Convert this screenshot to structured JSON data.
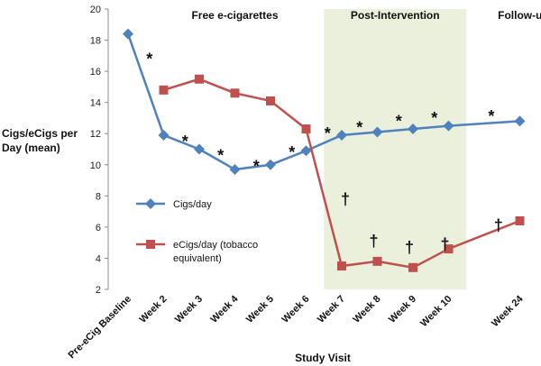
{
  "chart_data": {
    "type": "line",
    "ylabel_lines": [
      "Cigs/eCigs per",
      "Day (mean)"
    ],
    "xlabel": "Study Visit",
    "ylim": [
      2,
      20
    ],
    "yticks": [
      2,
      4,
      6,
      8,
      10,
      12,
      14,
      16,
      18,
      20
    ],
    "categories": [
      "Pre-eCig Baseline",
      "Week 2",
      "Week 3",
      "Week 4",
      "Week 5",
      "Week 6",
      "Week 7",
      "Week 8",
      "Week 9",
      "Week 10",
      "",
      "Week 24"
    ],
    "phases": [
      {
        "label": "Free e-cigarettes",
        "from_index": 0,
        "to_index": 6,
        "shaded": false
      },
      {
        "label": "Post-Intervention",
        "from_index": 5.5,
        "to_index": 9.5,
        "shaded": true
      },
      {
        "label": "Follow-up",
        "from_index": 10.6,
        "to_index": 11.6,
        "shaded": false
      }
    ],
    "series": [
      {
        "name": "Cigs/day",
        "color": "#4f81bd",
        "marker": "diamond",
        "values": [
          18.4,
          11.9,
          11.0,
          9.7,
          10.0,
          10.9,
          11.9,
          12.1,
          12.3,
          12.5,
          null,
          12.8
        ]
      },
      {
        "name": "eCigs/day (tobacco equivalent)",
        "legend_lines": [
          "eCigs/day (tobacco",
          "equivalent)"
        ],
        "color": "#c0504d",
        "marker": "square",
        "values": [
          null,
          14.8,
          15.5,
          14.6,
          14.1,
          12.3,
          3.5,
          3.8,
          3.4,
          4.6,
          null,
          6.4
        ]
      }
    ],
    "significance_marks": [
      {
        "symbol": "*",
        "x_index": 0.6,
        "y": 16.8
      },
      {
        "symbol": "*",
        "x_index": 1.6,
        "y": 11.5
      },
      {
        "symbol": "*",
        "x_index": 2.6,
        "y": 10.6
      },
      {
        "symbol": "*",
        "x_index": 3.6,
        "y": 9.9
      },
      {
        "symbol": "*",
        "x_index": 4.6,
        "y": 10.8
      },
      {
        "symbol": "*",
        "x_index": 5.6,
        "y": 12.0
      },
      {
        "symbol": "*",
        "x_index": 6.5,
        "y": 12.4
      },
      {
        "symbol": "*",
        "x_index": 7.6,
        "y": 12.8
      },
      {
        "symbol": "*",
        "x_index": 8.6,
        "y": 13.0
      },
      {
        "symbol": "*",
        "x_index": 10.2,
        "y": 13.1
      },
      {
        "symbol": "†",
        "x_index": 6.1,
        "y": 7.8
      },
      {
        "symbol": "†",
        "x_index": 6.9,
        "y": 5.1
      },
      {
        "symbol": "†",
        "x_index": 7.9,
        "y": 4.7
      },
      {
        "symbol": "†",
        "x_index": 8.9,
        "y": 4.9
      },
      {
        "symbol": "†",
        "x_index": 10.4,
        "y": 6.1
      }
    ]
  }
}
